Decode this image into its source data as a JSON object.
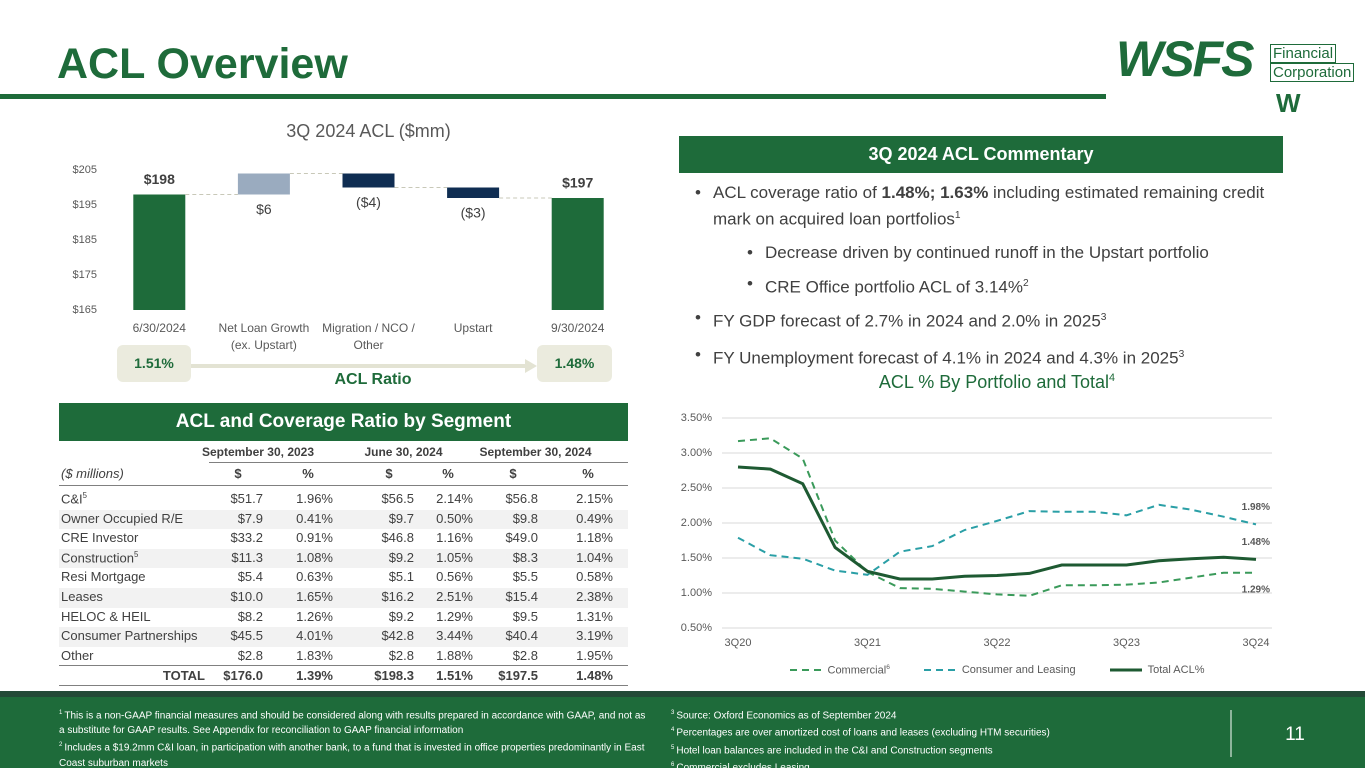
{
  "title": "ACL Overview",
  "logo": {
    "mark": "WSFS",
    "line1": "Financial",
    "line2": "Corporation",
    "symbol": "W"
  },
  "chart_data": [
    {
      "type": "waterfall",
      "title": "3Q 2024 ACL ($mm)",
      "categories": [
        "6/30/2024",
        "Net Loan Growth (ex. Upstart)",
        "Migration / NCO / Other",
        "Upstart",
        "9/30/2024"
      ],
      "values": [
        198,
        6,
        -4,
        -3,
        197
      ],
      "value_labels": [
        "$198",
        "$6",
        "($4)",
        "($3)",
        "$197"
      ],
      "colors": {
        "total": "#1e6b3a",
        "increase": "#9aabbf",
        "decrease": "#0f2d52"
      },
      "ylim": [
        165,
        205
      ],
      "yticks": [
        {
          "value": 165,
          "label": "$165"
        },
        {
          "value": 175,
          "label": "$175"
        },
        {
          "value": 185,
          "label": "$185"
        },
        {
          "value": 195,
          "label": "$195"
        },
        {
          "value": 205,
          "label": "$205"
        }
      ]
    },
    {
      "type": "line",
      "title": "ACL % By Portfolio and Total",
      "title_note": "4",
      "categories": [
        "3Q20",
        null,
        null,
        null,
        "3Q21",
        null,
        null,
        null,
        "3Q22",
        null,
        null,
        null,
        "3Q23",
        null,
        null,
        null,
        "3Q24"
      ],
      "series": [
        {
          "name": "Commercial",
          "note": "6",
          "color": "#3a9a5a",
          "line_style": "dashed",
          "values": [
            3.17,
            3.21,
            2.92,
            1.75,
            1.3,
            1.07,
            1.06,
            1.02,
            0.98,
            0.96,
            1.11,
            1.11,
            1.12,
            1.15,
            1.22,
            1.29,
            1.29
          ],
          "value_labels": [
            null,
            null,
            null,
            null,
            null,
            null,
            null,
            null,
            null,
            null,
            null,
            null,
            null,
            null,
            null,
            null,
            "1.29%"
          ]
        },
        {
          "name": "Consumer and Leasing",
          "color": "#2a9fa6",
          "line_style": "dashed",
          "values": [
            1.79,
            1.54,
            1.49,
            1.32,
            1.26,
            1.59,
            1.67,
            1.9,
            2.03,
            2.17,
            2.16,
            2.16,
            2.11,
            2.26,
            2.19,
            2.09,
            1.98
          ],
          "value_labels": [
            null,
            null,
            null,
            null,
            null,
            null,
            null,
            null,
            null,
            null,
            null,
            null,
            null,
            null,
            null,
            null,
            "1.98%"
          ]
        },
        {
          "name": "Total ACL%",
          "color": "#1e5a32",
          "line_style": "solid",
          "values": [
            2.8,
            2.77,
            2.56,
            1.65,
            1.31,
            1.2,
            1.2,
            1.24,
            1.25,
            1.28,
            1.4,
            1.4,
            1.4,
            1.46,
            1.49,
            1.51,
            1.48
          ],
          "value_labels": [
            null,
            null,
            null,
            null,
            null,
            null,
            null,
            null,
            null,
            null,
            null,
            null,
            null,
            null,
            null,
            null,
            "1.48%"
          ]
        }
      ],
      "ylim": [
        0.5,
        3.5
      ],
      "yticks": [
        {
          "value": 0.5,
          "label": "0.50%"
        },
        {
          "value": 1,
          "label": "1.00%"
        },
        {
          "value": 1.5,
          "label": "1.50%"
        },
        {
          "value": 2,
          "label": "2.00%"
        },
        {
          "value": 2.5,
          "label": "2.50%"
        },
        {
          "value": 3,
          "label": "3.00%"
        },
        {
          "value": 3.5,
          "label": "3.50%"
        }
      ],
      "grid": true,
      "legend": "bottom"
    }
  ],
  "acl_ratio": {
    "start": "1.51%",
    "end": "1.48%",
    "label": "ACL Ratio"
  },
  "commentary": {
    "header": "3Q 2024 ACL Commentary",
    "bullets": [
      {
        "level": 1,
        "parts": [
          {
            "text": "ACL coverage ratio of "
          },
          {
            "text": "1.48%; 1.63%",
            "bold": true
          },
          {
            "text": " including estimated remaining credit mark on acquired loan portfolios"
          },
          {
            "text": "1",
            "sup": true
          }
        ]
      },
      {
        "level": 2,
        "parts": [
          {
            "text": "Decrease driven by continued runoff in the Upstart portfolio"
          }
        ]
      },
      {
        "level": 2,
        "parts": [
          {
            "text": "CRE Office portfolio ACL of 3.14%"
          },
          {
            "text": "2",
            "sup": true
          }
        ]
      },
      {
        "level": 1,
        "parts": [
          {
            "text": "FY GDP forecast of 2.7% in 2024 and 2.0% in 2025"
          },
          {
            "text": "3",
            "sup": true
          }
        ]
      },
      {
        "level": 1,
        "parts": [
          {
            "text": "FY Unemployment forecast of 4.1% in 2024 and 4.3% in 2025"
          },
          {
            "text": "3",
            "sup": true
          }
        ]
      }
    ]
  },
  "table": {
    "header": "ACL and Coverage Ratio by Segment",
    "groups": [
      "September 30, 2023",
      "June 30, 2024",
      "September 30, 2024"
    ],
    "units": "($ millions)",
    "subheads": [
      "$",
      "%",
      "$",
      "%",
      "$",
      "%"
    ],
    "rows": [
      {
        "label": "C&I",
        "note": "5",
        "cells": [
          "$51.7",
          "1.96%",
          "$56.5",
          "2.14%",
          "$56.8",
          "2.15%"
        ]
      },
      {
        "label": "Owner Occupied R/E",
        "cells": [
          "$7.9",
          "0.41%",
          "$9.7",
          "0.50%",
          "$9.8",
          "0.49%"
        ]
      },
      {
        "label": "CRE Investor",
        "cells": [
          "$33.2",
          "0.91%",
          "$46.8",
          "1.16%",
          "$49.0",
          "1.18%"
        ]
      },
      {
        "label": "Construction",
        "note": "5",
        "cells": [
          "$11.3",
          "1.08%",
          "$9.2",
          "1.05%",
          "$8.3",
          "1.04%"
        ]
      },
      {
        "label": "Resi Mortgage",
        "cells": [
          "$5.4",
          "0.63%",
          "$5.1",
          "0.56%",
          "$5.5",
          "0.58%"
        ]
      },
      {
        "label": "Leases",
        "cells": [
          "$10.0",
          "1.65%",
          "$16.2",
          "2.51%",
          "$15.4",
          "2.38%"
        ]
      },
      {
        "label": "HELOC & HEIL",
        "cells": [
          "$8.2",
          "1.26%",
          "$9.2",
          "1.29%",
          "$9.5",
          "1.31%"
        ]
      },
      {
        "label": "Consumer Partnerships",
        "cells": [
          "$45.5",
          "4.01%",
          "$42.8",
          "3.44%",
          "$40.4",
          "3.19%"
        ]
      },
      {
        "label": "Other",
        "cells": [
          "$2.8",
          "1.83%",
          "$2.8",
          "1.88%",
          "$2.8",
          "1.95%"
        ]
      }
    ],
    "total": {
      "label": "TOTAL",
      "cells": [
        "$176.0",
        "1.39%",
        "$198.3",
        "1.51%",
        "$197.5",
        "1.48%"
      ]
    }
  },
  "footnotes_left": [
    {
      "num": "1",
      "text": "This is a non-GAAP financial measures and should be considered along with results prepared in accordance with GAAP, and not as a substitute for GAAP results.  See Appendix for reconciliation to GAAP financial information"
    },
    {
      "num": "2",
      "text": "Includes a $19.2mm C&I loan, in participation with another bank, to a fund that is invested in office properties predominantly in East Coast suburban markets"
    }
  ],
  "footnotes_right": [
    {
      "num": "3",
      "text": "Source: Oxford Economics as of September  2024"
    },
    {
      "num": "4",
      "text": "Percentages are over amortized cost of loans and leases (excluding HTM securities)"
    },
    {
      "num": "5",
      "text": "Hotel loan balances are included in the C&I and Construction segments"
    },
    {
      "num": "6",
      "text": "Commercial excludes Leasing"
    }
  ],
  "page_number": "11"
}
